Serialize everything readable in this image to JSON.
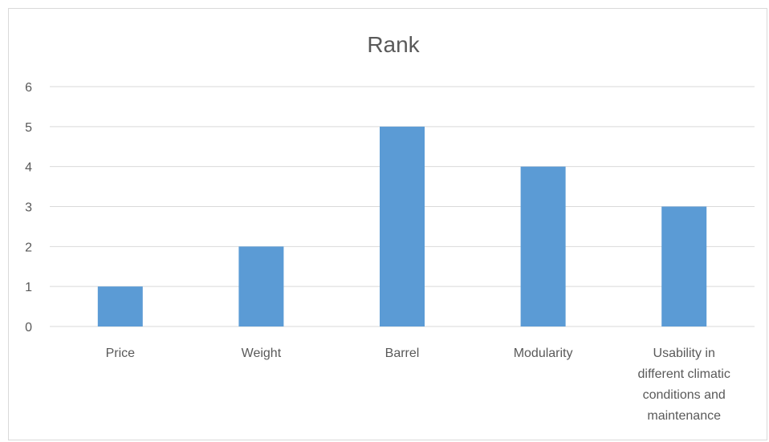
{
  "chart_data": {
    "type": "bar",
    "title": "Rank",
    "categories": [
      [
        "Price"
      ],
      [
        "Weight"
      ],
      [
        "Barrel"
      ],
      [
        "Modularity"
      ],
      [
        "Usability in",
        "different climatic",
        "conditions and",
        "maintenance"
      ]
    ],
    "values": [
      1,
      2,
      5,
      4,
      3
    ],
    "ylim": [
      0,
      6
    ],
    "yticks": [
      0,
      1,
      2,
      3,
      4,
      5,
      6
    ],
    "xlabel": "",
    "ylabel": "",
    "grid": true,
    "legend": "none",
    "colors": {
      "bar": "#5b9bd5",
      "grid": "#d9d9d9",
      "text": "#595959"
    }
  }
}
